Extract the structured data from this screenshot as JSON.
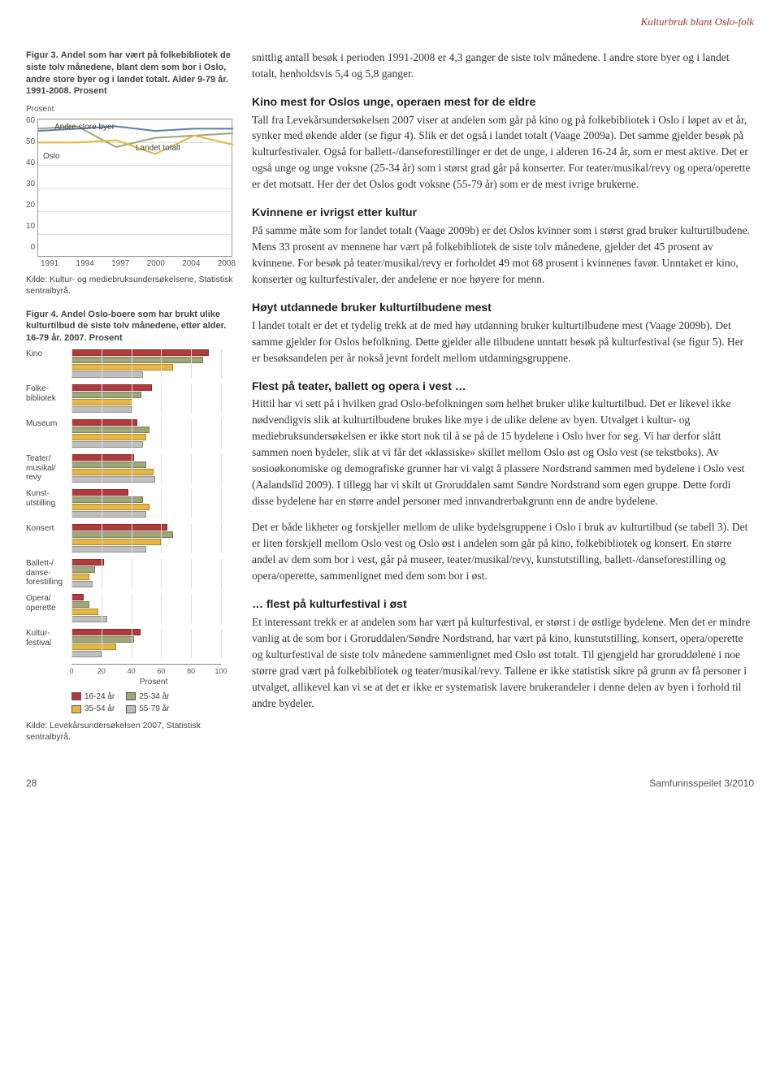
{
  "header": {
    "running_title": "Kulturbruk blant Oslo-folk"
  },
  "fig3": {
    "caption_lead": "Figur 3.",
    "caption_rest": "Andel som har vært på folkebibliotek de siste tolv månedene, blant dem som bor i Oslo, andre store byer og i landet totalt. Alder 9-79 år. 1991-2008. Prosent",
    "y_axis_title": "Prosent",
    "y_ticks": [
      "60",
      "50",
      "40",
      "30",
      "20",
      "10",
      "0"
    ],
    "x_ticks": [
      "1991",
      "1994",
      "1997",
      "2000",
      "2004",
      "2008"
    ],
    "series": {
      "oslo": {
        "label": "Oslo",
        "color": "#5b7fa6",
        "values": [
          55,
          56,
          57,
          55,
          56,
          56
        ]
      },
      "andre": {
        "label": "Andre store byer",
        "color": "#a0a57a",
        "values": [
          56,
          57,
          48,
          52,
          53,
          54
        ]
      },
      "landet": {
        "label": "Landet totalt",
        "color": "#e6b645",
        "values": [
          50,
          50,
          51,
          45,
          53,
          49
        ]
      }
    },
    "source": "Kilde: Kultur- og mediebruksundersøkelsene, Statistisk sentralbyrå.",
    "ylim": [
      0,
      60
    ],
    "background": "#ffffff",
    "grid_color": "#dddddd"
  },
  "fig4": {
    "caption_lead": "Figur 4.",
    "caption_rest": "Andel Oslo-boere som har brukt ulike kulturtilbud de siste tolv månedene, etter alder. 16-79 år. 2007. Prosent",
    "categories": [
      {
        "label": "Kino",
        "v": [
          92,
          88,
          68,
          48
        ]
      },
      {
        "label": "Folke-\nbibliotek",
        "v": [
          54,
          47,
          41,
          40
        ]
      },
      {
        "label": "Museum",
        "v": [
          44,
          52,
          50,
          48
        ]
      },
      {
        "label": "Teater/\nmusikal/\nrevy",
        "v": [
          42,
          50,
          55,
          56
        ]
      },
      {
        "label": "Kunst-\nutstilling",
        "v": [
          38,
          48,
          52,
          50
        ]
      },
      {
        "label": "Konsert",
        "v": [
          64,
          68,
          60,
          50
        ]
      },
      {
        "label": "Ballett-/\ndanse-\nforestilling",
        "v": [
          22,
          16,
          12,
          14
        ]
      },
      {
        "label": "Opera/\noperette",
        "v": [
          8,
          12,
          18,
          24
        ]
      },
      {
        "label": "Kultur-\nfestival",
        "v": [
          46,
          42,
          30,
          20
        ]
      }
    ],
    "age_groups": [
      {
        "label": "16-24 år",
        "color": "#b13a3a"
      },
      {
        "label": "25-34 år",
        "color": "#a0a57a"
      },
      {
        "label": "35-54 år",
        "color": "#e6b645"
      },
      {
        "label": "55-79 år",
        "color": "#bfbfbf"
      }
    ],
    "x_ticks": [
      "0",
      "20",
      "40",
      "60",
      "80",
      "100"
    ],
    "x_axis_label": "Prosent",
    "xlim": [
      0,
      100
    ],
    "source": "Kilde: Levekårsundersøkelsen 2007, Statistisk sentralbyrå."
  },
  "body": {
    "intro_p1": "snittlig antall besøk i perioden 1991-2008 er 4,3 ganger de siste tolv månedene. I andre store byer og i landet totalt, henholdsvis 5,4 og 5,8 ganger.",
    "s1_title": "Kino mest for Oslos unge, operaen mest for de eldre",
    "s1_p1": "Tall fra Levekårsundersøkelsen 2007 viser at andelen som går på kino og på folkebibliotek i Oslo i løpet av et år, synker med økende alder (se figur 4). Slik er det også i landet totalt (Vaage 2009a). Det samme gjelder besøk på kulturfestivaler. Også for ballett-/danseforestillinger er det de unge, i alderen 16-24 år, som er mest aktive. Det er også unge og unge voksne (25-34 år) som i størst grad går på konserter. For teater/musikal/revy og opera/operette er det motsatt. Her der det Oslos godt voksne (55-79 år) som er de mest ivrige brukerne.",
    "s2_title": "Kvinnene er ivrigst etter kultur",
    "s2_p1": "På samme måte som for landet totalt (Vaage 2009b) er det Oslos kvinner som i størst grad bruker kulturtilbudene. Mens 33 prosent av mennene har vært på folkebibliotek de siste tolv månedene, gjelder det 45 prosent av kvinnene. For besøk på teater/musikal/revy er forholdet 49 mot 68 prosent i kvinnenes favør. Unntaket er kino, konserter og kulturfestivaler, der andelene er noe høyere for menn.",
    "s3_title": "Høyt utdannede bruker kulturtilbudene mest",
    "s3_p1": "I landet totalt er det et tydelig trekk at de med høy utdanning bruker kulturtilbudene mest (Vaage 2009b). Det samme gjelder for Oslos befolkning. Dette gjelder alle tilbudene unntatt besøk på kulturfestival (se figur 5). Her er besøksandelen per år nokså jevnt fordelt mellom utdanningsgruppene.",
    "s4_title": "Flest på teater, ballett og opera i vest …",
    "s4_p1": "Hittil har vi sett på i hvilken grad Oslo-befolkningen som helhet bruker ulike kulturtilbud. Det er likevel ikke nødvendigvis slik at kulturtilbudene brukes like mye i de ulike delene av byen. Utvalget i kultur- og mediebruksundersøkelsen er ikke stort nok til å se på de 15 bydelene i Oslo hver for seg. Vi har derfor slått sammen noen bydeler, slik at vi får det «klassiske» skillet mellom Oslo øst og Oslo vest (se tekstboks). Av sosioøkonomiske og demografiske grunner har vi valgt å plassere Nordstrand sammen med bydelene i Oslo vest (Aalandslid 2009). I tillegg har vi skilt ut Groruddalen samt Søndre Nordstrand som egen gruppe. Dette fordi disse bydelene har en større andel personer med innvandrerbakgrunn enn de andre bydelene.",
    "s4_p2": "Det er både likheter og forskjeller mellom de ulike bydelsgruppene i Oslo i bruk av kulturtilbud (se tabell 3). Det er liten forskjell mellom Oslo vest og Oslo øst i andelen som går på kino, folkebibliotek og konsert. En større andel av dem som bor i vest, går på museer, teater/musikal/revy, kunstutstilling, ballett-/danseforestilling og opera/operette, sammenlignet med dem som bor i øst.",
    "s5_title": "… flest på kulturfestival i øst",
    "s5_p1": "Et interessant trekk er at andelen som har vært på kulturfestival, er størst i de østlige bydelene. Men det er mindre vanlig at de som bor i Groruddalen/Søndre Nordstrand, har vært på kino, kunstutstilling, konsert, opera/operette og kulturfestival de siste tolv månedene sammenlignet med Oslo øst totalt. Til gjengjeld har groruddølene i noe større grad vært på folkebibliotek og teater/musikal/revy. Tallene er ikke statistisk sikre på grunn av få personer i utvalget, allikevel kan vi se at det er ikke er systematisk lavere brukerandeler i denne delen av byen i forhold til andre bydeler."
  },
  "footer": {
    "page_no": "28",
    "pub": "Samfunnsspeilet 3/2010"
  }
}
